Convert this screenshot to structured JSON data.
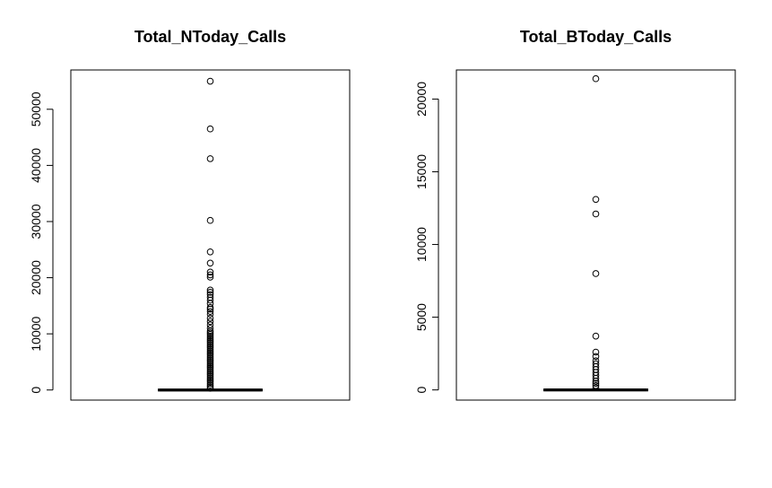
{
  "chart_data": [
    {
      "type": "boxplot",
      "title": "Total_NToday_Calls",
      "ylim": [
        -1800,
        57000
      ],
      "yticks": [
        0,
        10000,
        20000,
        30000,
        40000,
        50000
      ],
      "ytick_labels": [
        "0",
        "10000",
        "20000",
        "30000",
        "40000",
        "50000"
      ],
      "box": {
        "min": 0,
        "q1": 0,
        "median": 0,
        "q3": 0,
        "max": 0
      },
      "outliers": [
        55000,
        46500,
        41200,
        30200,
        24600,
        22600,
        21000,
        20500,
        20100,
        17800,
        17400,
        17000,
        16500,
        16000,
        15400,
        14700,
        14400,
        14000,
        13500,
        12800,
        12200,
        11600,
        11000,
        10500,
        10200,
        9900,
        9600,
        9300,
        9000,
        8700,
        8400,
        8100,
        7800,
        7500,
        7200,
        6900,
        6600,
        6300,
        6000,
        5700,
        5400,
        5100,
        4800,
        4500,
        4200,
        3900,
        3600,
        3300,
        3000,
        2700,
        2400,
        2100,
        1800,
        1500,
        1200,
        900,
        600,
        300
      ]
    },
    {
      "type": "boxplot",
      "title": "Total_BToday_Calls",
      "ylim": [
        -700,
        22000
      ],
      "yticks": [
        0,
        5000,
        10000,
        15000,
        20000
      ],
      "ytick_labels": [
        "0",
        "5000",
        "10000",
        "15000",
        "20000"
      ],
      "box": {
        "min": 0,
        "q1": 0,
        "median": 0,
        "q3": 0,
        "max": 0
      },
      "outliers": [
        21400,
        13100,
        12100,
        8000,
        3700,
        2600,
        2300,
        2000,
        1800,
        1600,
        1400,
        1200,
        1000,
        800,
        600,
        450,
        300,
        150
      ]
    }
  ]
}
